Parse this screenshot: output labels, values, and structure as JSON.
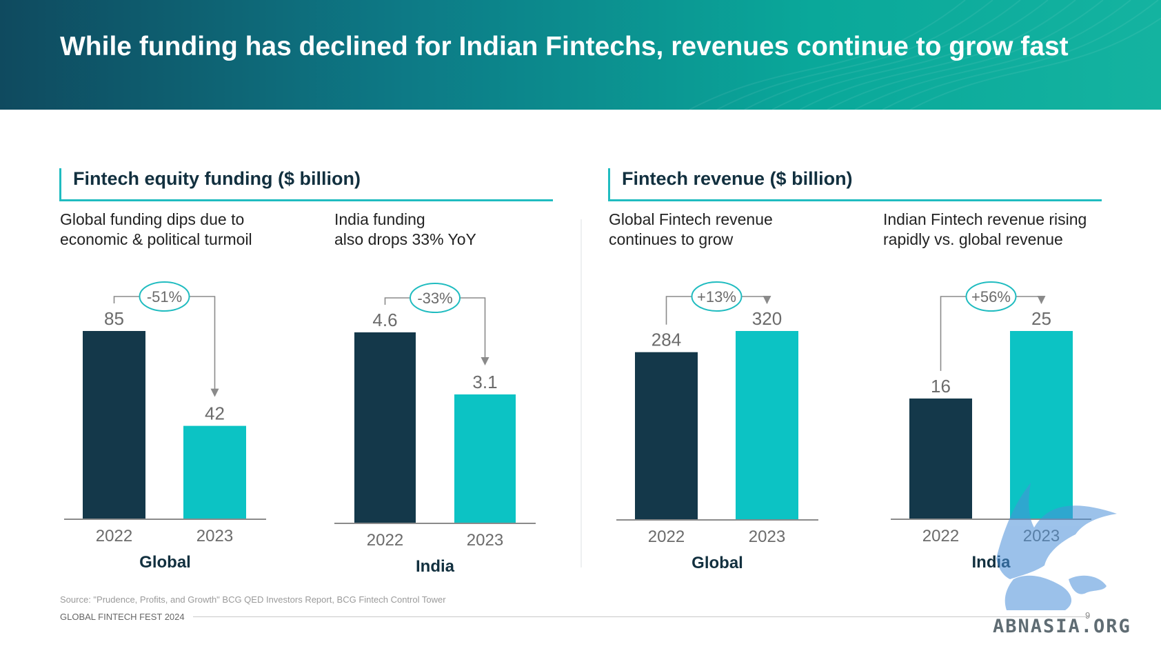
{
  "header": {
    "title": "While funding has declined for Indian Fintechs, revenues continue to grow fast"
  },
  "sections": [
    {
      "heading": "Fintech equity funding ($ billion)"
    },
    {
      "heading": "Fintech revenue ($ billion)"
    }
  ],
  "subtitles": [
    {
      "line1": "Global funding dips due to",
      "line2": "economic & political turmoil"
    },
    {
      "line1": "India funding",
      "line2": "also drops 33% YoY"
    },
    {
      "line1": "Global Fintech revenue",
      "line2": "continues to grow"
    },
    {
      "line1": "Indian Fintech revenue rising",
      "line2": "rapidly vs. global revenue"
    }
  ],
  "colors": {
    "y2022": "#14384a",
    "y2023": "#0cc3c4",
    "accent": "#20bcc0",
    "label": "#6b6b6b"
  },
  "chart_data": [
    {
      "type": "bar",
      "group": "Global",
      "metric": "Fintech equity funding ($ billion)",
      "categories": [
        "2022",
        "2023"
      ],
      "values": [
        85,
        42
      ],
      "value_labels": [
        "85",
        "42"
      ],
      "change": "-51%"
    },
    {
      "type": "bar",
      "group": "India",
      "metric": "Fintech equity funding ($ billion)",
      "categories": [
        "2022",
        "2023"
      ],
      "values": [
        4.6,
        3.1
      ],
      "value_labels": [
        "4.6",
        "3.1"
      ],
      "change": "-33%"
    },
    {
      "type": "bar",
      "group": "Global",
      "metric": "Fintech revenue ($ billion)",
      "categories": [
        "2022",
        "2023"
      ],
      "values": [
        284,
        320
      ],
      "value_labels": [
        "284",
        "320"
      ],
      "change": "+13%"
    },
    {
      "type": "bar",
      "group": "India",
      "metric": "Fintech revenue ($ billion)",
      "categories": [
        "2022",
        "2023"
      ],
      "values": [
        16,
        25
      ],
      "value_labels": [
        "16",
        "25"
      ],
      "change": "+56%"
    }
  ],
  "footer": {
    "source": "Source: \"Prudence, Profits, and Growth\" BCG QED Investors Report, BCG Fintech Control Tower",
    "event": "GLOBAL FINTECH FEST 2024",
    "page": "9"
  },
  "watermark": {
    "text": "ABNASIA.ORG"
  }
}
